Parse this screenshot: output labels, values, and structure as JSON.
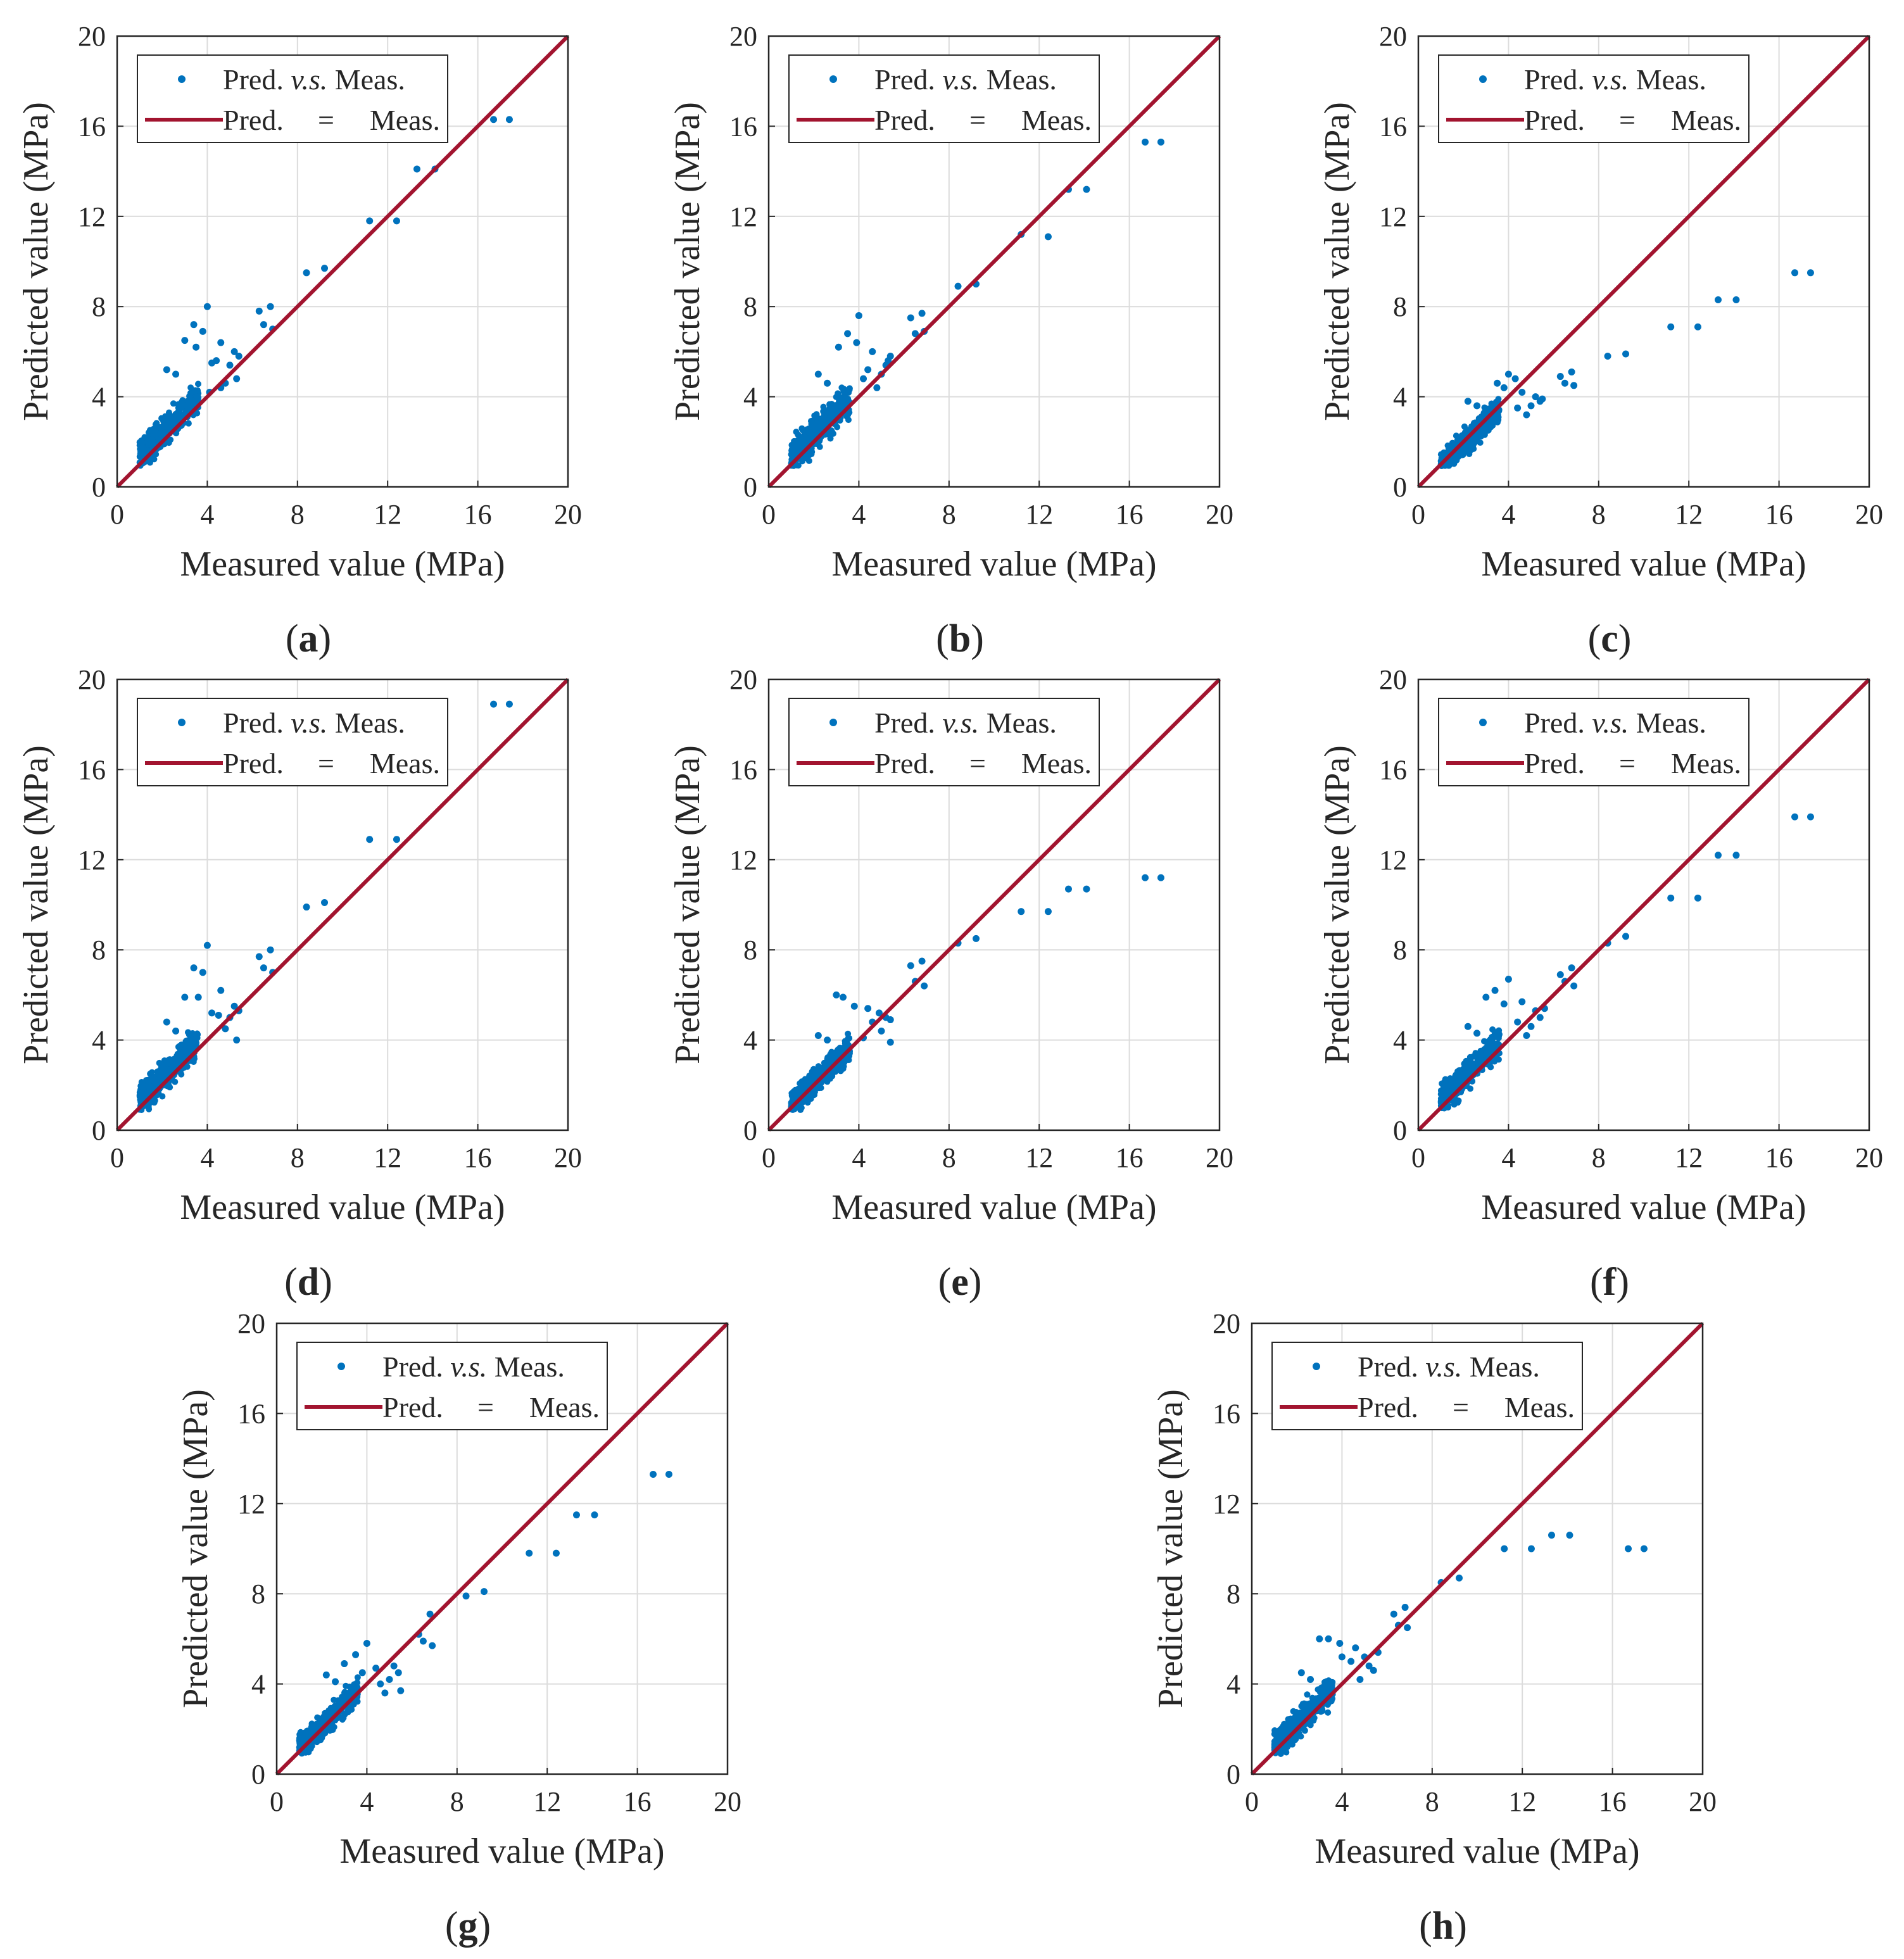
{
  "figure": {
    "legend": {
      "scatter_label_prefix": "Pred. ",
      "scatter_label_em": "v.s.",
      "scatter_label_suffix": " Meas.",
      "line_label_a": "Pred.",
      "line_label_eq": "=",
      "line_label_b": "Meas."
    },
    "colors": {
      "points": "#0072BD",
      "line": "#A2142F",
      "grid": "#DCDCDC",
      "axis": "#262626"
    }
  },
  "chart_data": [
    {
      "id": "a",
      "panel_label": "a",
      "type": "scatter",
      "title": "",
      "xlabel": "Measured value (MPa)",
      "ylabel": "Predicted  value (MPa)",
      "xlim": [
        0,
        20
      ],
      "ylim": [
        0,
        20
      ],
      "xticks": [
        "0",
        "4",
        "8",
        "12",
        "16",
        "20"
      ],
      "yticks": [
        "0",
        "4",
        "8",
        "12",
        "16",
        "20"
      ],
      "grid": true,
      "legend": "top-left",
      "reference_line": {
        "name": "Pred. = Meas.",
        "x": [
          0,
          20
        ],
        "y": [
          0,
          20
        ]
      },
      "series_name": "Pred. v.s. Meas.",
      "bulk": {
        "x_range": [
          1,
          3.6
        ],
        "y_offset": 0.4,
        "spread": 0.6
      },
      "points": [
        [
          16.7,
          16.3
        ],
        [
          17.4,
          16.3
        ],
        [
          13.3,
          14.1
        ],
        [
          14.1,
          14.1
        ],
        [
          11.2,
          11.8
        ],
        [
          12.4,
          11.8
        ],
        [
          8.4,
          9.5
        ],
        [
          9.2,
          9.7
        ],
        [
          6.3,
          7.8
        ],
        [
          6.8,
          8.0
        ],
        [
          6.5,
          7.2
        ],
        [
          6.9,
          7.0
        ],
        [
          4.0,
          8.0
        ],
        [
          3.4,
          7.2
        ],
        [
          3.8,
          6.9
        ],
        [
          3.0,
          6.5
        ],
        [
          4.6,
          6.4
        ],
        [
          3.5,
          6.2
        ],
        [
          5.2,
          6.0
        ],
        [
          5.4,
          5.8
        ],
        [
          4.2,
          5.5
        ],
        [
          4.4,
          5.6
        ],
        [
          5.0,
          5.4
        ],
        [
          5.3,
          4.8
        ],
        [
          4.8,
          4.6
        ],
        [
          2.2,
          5.2
        ],
        [
          2.6,
          5.0
        ],
        [
          4.1,
          4.2
        ],
        [
          4.6,
          4.4
        ]
      ]
    },
    {
      "id": "b",
      "panel_label": "b",
      "type": "scatter",
      "title": "",
      "xlabel": "Measured value (MPa)",
      "ylabel": "Predicted  value (MPa)",
      "xlim": [
        0,
        20
      ],
      "ylim": [
        0,
        20
      ],
      "xticks": [
        "0",
        "4",
        "8",
        "12",
        "16",
        "20"
      ],
      "yticks": [
        "0",
        "4",
        "8",
        "12",
        "16",
        "20"
      ],
      "grid": true,
      "legend": "top-left",
      "reference_line": {
        "name": "Pred. = Meas.",
        "x": [
          0,
          20
        ],
        "y": [
          0,
          20
        ]
      },
      "series_name": "Pred. v.s. Meas.",
      "bulk": {
        "x_range": [
          1,
          3.6
        ],
        "y_offset": 0.3,
        "spread": 0.6
      },
      "points": [
        [
          16.7,
          15.3
        ],
        [
          17.4,
          15.3
        ],
        [
          13.3,
          13.2
        ],
        [
          14.1,
          13.2
        ],
        [
          11.2,
          11.2
        ],
        [
          12.4,
          11.1
        ],
        [
          8.4,
          8.9
        ],
        [
          9.2,
          9.0
        ],
        [
          6.3,
          7.5
        ],
        [
          6.8,
          7.7
        ],
        [
          6.5,
          6.8
        ],
        [
          6.9,
          6.9
        ],
        [
          4.0,
          7.6
        ],
        [
          3.5,
          6.8
        ],
        [
          3.9,
          6.4
        ],
        [
          3.1,
          6.2
        ],
        [
          4.6,
          6.0
        ],
        [
          5.4,
          5.8
        ],
        [
          5.2,
          5.4
        ],
        [
          4.4,
          5.2
        ],
        [
          5.0,
          5.0
        ],
        [
          4.2,
          4.8
        ],
        [
          4.8,
          4.4
        ],
        [
          2.2,
          5.0
        ],
        [
          2.6,
          4.6
        ],
        [
          5.3,
          5.6
        ]
      ]
    },
    {
      "id": "c",
      "panel_label": "c",
      "type": "scatter",
      "title": "",
      "xlabel": "Measured value (MPa)",
      "ylabel": "Predicted  value (MPa)",
      "xlim": [
        0,
        20
      ],
      "ylim": [
        0,
        20
      ],
      "xticks": [
        "0",
        "4",
        "8",
        "12",
        "16",
        "20"
      ],
      "yticks": [
        "0",
        "4",
        "8",
        "12",
        "16",
        "20"
      ],
      "grid": true,
      "legend": "top-left",
      "reference_line": {
        "name": "Pred. = Meas.",
        "x": [
          0,
          20
        ],
        "y": [
          0,
          20
        ]
      },
      "series_name": "Pred. v.s. Meas.",
      "bulk": {
        "x_range": [
          1,
          3.6
        ],
        "y_offset": -0.1,
        "spread": 0.5
      },
      "points": [
        [
          16.7,
          9.5
        ],
        [
          17.4,
          9.5
        ],
        [
          13.3,
          8.3
        ],
        [
          14.1,
          8.3
        ],
        [
          11.2,
          7.1
        ],
        [
          12.4,
          7.1
        ],
        [
          8.4,
          5.8
        ],
        [
          9.2,
          5.9
        ],
        [
          6.3,
          4.9
        ],
        [
          6.8,
          5.1
        ],
        [
          6.5,
          4.6
        ],
        [
          6.9,
          4.5
        ],
        [
          4.0,
          5.0
        ],
        [
          3.5,
          4.6
        ],
        [
          3.8,
          4.4
        ],
        [
          4.3,
          4.8
        ],
        [
          4.6,
          4.2
        ],
        [
          5.2,
          4.0
        ],
        [
          5.4,
          3.8
        ],
        [
          5.0,
          3.6
        ],
        [
          4.4,
          3.5
        ],
        [
          4.8,
          3.2
        ],
        [
          2.2,
          3.8
        ],
        [
          2.6,
          3.6
        ],
        [
          5.5,
          3.9
        ]
      ]
    },
    {
      "id": "d",
      "panel_label": "d",
      "type": "scatter",
      "title": "",
      "xlabel": "Measured value (MPa)",
      "ylabel": "Predicted  value (MPa)",
      "xlim": [
        0,
        20
      ],
      "ylim": [
        0,
        20
      ],
      "xticks": [
        "0",
        "4",
        "8",
        "12",
        "16",
        "20"
      ],
      "yticks": [
        "0",
        "4",
        "8",
        "12",
        "16",
        "20"
      ],
      "grid": true,
      "legend": "top-left",
      "reference_line": {
        "name": "Pred. = Meas.",
        "x": [
          0,
          20
        ],
        "y": [
          0,
          20
        ]
      },
      "series_name": "Pred. v.s. Meas.",
      "bulk": {
        "x_range": [
          1,
          3.6
        ],
        "y_offset": 0.3,
        "spread": 0.6
      },
      "points": [
        [
          16.7,
          18.9
        ],
        [
          17.4,
          18.9
        ],
        [
          11.2,
          12.9
        ],
        [
          12.4,
          12.9
        ],
        [
          8.4,
          9.9
        ],
        [
          9.2,
          10.1
        ],
        [
          6.3,
          7.7
        ],
        [
          6.8,
          8.0
        ],
        [
          6.5,
          7.2
        ],
        [
          6.9,
          7.0
        ],
        [
          4.0,
          8.2
        ],
        [
          3.4,
          7.2
        ],
        [
          3.8,
          7.0
        ],
        [
          3.0,
          5.9
        ],
        [
          4.6,
          6.2
        ],
        [
          4.2,
          5.2
        ],
        [
          4.5,
          5.1
        ],
        [
          5.2,
          5.5
        ],
        [
          5.4,
          5.3
        ],
        [
          5.0,
          5.0
        ],
        [
          4.8,
          4.5
        ],
        [
          5.3,
          4.0
        ],
        [
          2.2,
          4.8
        ],
        [
          2.6,
          4.4
        ],
        [
          3.6,
          5.9
        ]
      ]
    },
    {
      "id": "e",
      "panel_label": "e",
      "type": "scatter",
      "title": "",
      "xlabel": "Measured value (MPa)",
      "ylabel": "Predicted  value (MPa)",
      "xlim": [
        0,
        20
      ],
      "ylim": [
        0,
        20
      ],
      "xticks": [
        "0",
        "4",
        "8",
        "12",
        "16",
        "20"
      ],
      "yticks": [
        "0",
        "4",
        "8",
        "12",
        "16",
        "20"
      ],
      "grid": true,
      "legend": "top-left",
      "reference_line": {
        "name": "Pred. = Meas.",
        "x": [
          0,
          20
        ],
        "y": [
          0,
          20
        ]
      },
      "series_name": "Pred. v.s. Meas.",
      "bulk": {
        "x_range": [
          1,
          3.6
        ],
        "y_offset": 0.1,
        "spread": 0.5
      },
      "points": [
        [
          16.7,
          11.2
        ],
        [
          17.4,
          11.2
        ],
        [
          13.3,
          10.7
        ],
        [
          14.1,
          10.7
        ],
        [
          11.2,
          9.7
        ],
        [
          12.4,
          9.7
        ],
        [
          8.4,
          8.3
        ],
        [
          9.2,
          8.5
        ],
        [
          6.3,
          7.3
        ],
        [
          6.8,
          7.5
        ],
        [
          6.5,
          6.6
        ],
        [
          6.9,
          6.4
        ],
        [
          3.0,
          6.0
        ],
        [
          3.3,
          5.9
        ],
        [
          3.8,
          5.5
        ],
        [
          4.4,
          5.4
        ],
        [
          4.9,
          5.2
        ],
        [
          5.2,
          5.0
        ],
        [
          4.6,
          4.8
        ],
        [
          5.4,
          4.9
        ],
        [
          5.0,
          4.4
        ],
        [
          5.4,
          3.9
        ],
        [
          4.2,
          4.1
        ],
        [
          2.2,
          4.2
        ],
        [
          2.6,
          4.0
        ]
      ]
    },
    {
      "id": "f",
      "panel_label": "f",
      "type": "scatter",
      "title": "",
      "xlabel": "Measured value (MPa)",
      "ylabel": "Predicted  value (MPa)",
      "xlim": [
        0,
        20
      ],
      "ylim": [
        0,
        20
      ],
      "xticks": [
        "0",
        "4",
        "8",
        "12",
        "16",
        "20"
      ],
      "yticks": [
        "0",
        "4",
        "8",
        "12",
        "16",
        "20"
      ],
      "grid": true,
      "legend": "top-left",
      "reference_line": {
        "name": "Pred. = Meas.",
        "x": [
          0,
          20
        ],
        "y": [
          0,
          20
        ]
      },
      "series_name": "Pred. v.s. Meas.",
      "bulk": {
        "x_range": [
          1,
          3.6
        ],
        "y_offset": 0.3,
        "spread": 0.6
      },
      "points": [
        [
          16.7,
          13.9
        ],
        [
          17.4,
          13.9
        ],
        [
          13.3,
          12.2
        ],
        [
          14.1,
          12.2
        ],
        [
          11.2,
          10.3
        ],
        [
          12.4,
          10.3
        ],
        [
          8.4,
          8.3
        ],
        [
          9.2,
          8.6
        ],
        [
          6.3,
          6.9
        ],
        [
          6.8,
          7.2
        ],
        [
          6.5,
          6.6
        ],
        [
          6.9,
          6.4
        ],
        [
          4.0,
          6.7
        ],
        [
          3.4,
          6.2
        ],
        [
          3.0,
          5.9
        ],
        [
          3.8,
          5.6
        ],
        [
          4.6,
          5.7
        ],
        [
          5.2,
          5.3
        ],
        [
          5.4,
          5.0
        ],
        [
          5.0,
          4.6
        ],
        [
          4.4,
          4.8
        ],
        [
          4.8,
          4.2
        ],
        [
          2.2,
          4.6
        ],
        [
          2.6,
          4.3
        ],
        [
          5.6,
          5.4
        ]
      ]
    },
    {
      "id": "g",
      "panel_label": "g",
      "type": "scatter",
      "title": "",
      "xlabel": "Measured value (MPa)",
      "ylabel": "Predicted  value (MPa)",
      "xlim": [
        0,
        20
      ],
      "ylim": [
        0,
        20
      ],
      "xticks": [
        "0",
        "4",
        "8",
        "12",
        "16",
        "20"
      ],
      "yticks": [
        "0",
        "4",
        "8",
        "12",
        "16",
        "20"
      ],
      "grid": true,
      "legend": "top-left",
      "reference_line": {
        "name": "Pred. = Meas.",
        "x": [
          0,
          20
        ],
        "y": [
          0,
          20
        ]
      },
      "series_name": "Pred. v.s. Meas.",
      "bulk": {
        "x_range": [
          1,
          3.6
        ],
        "y_offset": 0.1,
        "spread": 0.5
      },
      "points": [
        [
          16.7,
          13.3
        ],
        [
          17.4,
          13.3
        ],
        [
          13.3,
          11.5
        ],
        [
          14.1,
          11.5
        ],
        [
          11.2,
          9.8
        ],
        [
          12.4,
          9.8
        ],
        [
          8.4,
          7.9
        ],
        [
          9.2,
          8.1
        ],
        [
          6.3,
          6.2
        ],
        [
          6.8,
          7.1
        ],
        [
          6.5,
          5.9
        ],
        [
          6.9,
          5.7
        ],
        [
          4.0,
          5.8
        ],
        [
          3.5,
          5.3
        ],
        [
          3.0,
          4.9
        ],
        [
          4.4,
          4.7
        ],
        [
          3.8,
          4.5
        ],
        [
          5.2,
          4.8
        ],
        [
          5.4,
          4.5
        ],
        [
          5.0,
          4.2
        ],
        [
          4.6,
          4.0
        ],
        [
          4.8,
          3.6
        ],
        [
          2.2,
          4.4
        ],
        [
          2.6,
          4.1
        ],
        [
          5.5,
          3.7
        ]
      ]
    },
    {
      "id": "h",
      "panel_label": "h",
      "type": "scatter",
      "title": "",
      "xlabel": "Measured value (MPa)",
      "ylabel": "Predicted  value (MPa)",
      "xlim": [
        0,
        20
      ],
      "ylim": [
        0,
        20
      ],
      "xticks": [
        "0",
        "4",
        "8",
        "12",
        "16",
        "20"
      ],
      "yticks": [
        "0",
        "4",
        "8",
        "12",
        "16",
        "20"
      ],
      "grid": true,
      "legend": "top-left",
      "reference_line": {
        "name": "Pred. = Meas.",
        "x": [
          0,
          20
        ],
        "y": [
          0,
          20
        ]
      },
      "series_name": "Pred. v.s. Meas.",
      "bulk": {
        "x_range": [
          1,
          3.6
        ],
        "y_offset": 0.2,
        "spread": 0.6
      },
      "points": [
        [
          16.7,
          10.0
        ],
        [
          17.4,
          10.0
        ],
        [
          13.3,
          10.6
        ],
        [
          14.1,
          10.6
        ],
        [
          11.2,
          10.0
        ],
        [
          12.4,
          10.0
        ],
        [
          8.4,
          8.5
        ],
        [
          9.2,
          8.7
        ],
        [
          6.3,
          7.1
        ],
        [
          6.8,
          7.4
        ],
        [
          6.5,
          6.6
        ],
        [
          6.9,
          6.5
        ],
        [
          3.0,
          6.0
        ],
        [
          3.4,
          6.0
        ],
        [
          3.9,
          5.8
        ],
        [
          4.6,
          5.6
        ],
        [
          4.0,
          5.2
        ],
        [
          4.4,
          5.0
        ],
        [
          5.0,
          5.2
        ],
        [
          5.2,
          4.8
        ],
        [
          5.4,
          4.6
        ],
        [
          4.8,
          4.2
        ],
        [
          2.2,
          4.5
        ],
        [
          2.6,
          4.2
        ],
        [
          5.6,
          5.4
        ]
      ]
    }
  ]
}
